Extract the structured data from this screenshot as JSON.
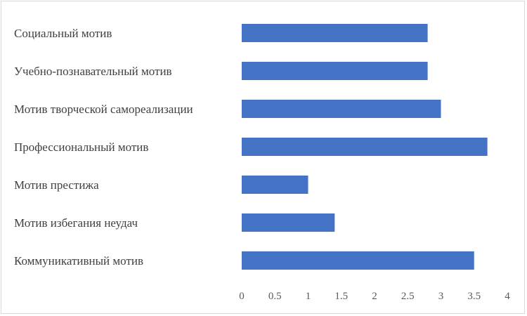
{
  "chart_data": {
    "type": "bar",
    "orientation": "horizontal",
    "categories": [
      "Социальный мотив",
      "Учебно-познавательный мотив",
      "Мотив творческой самореализации",
      "Профессиональный мотив",
      "Мотив престижа",
      "Мотив избегания неудач",
      "Коммуникативный мотив"
    ],
    "values": [
      2.8,
      2.8,
      3.0,
      3.7,
      1.0,
      1.4,
      3.5
    ],
    "xticks": [
      "0",
      "0.5",
      "1",
      "1.5",
      "2",
      "2.5",
      "3",
      "3.5",
      "4"
    ],
    "xlim": [
      0,
      4
    ],
    "grid": false,
    "legend": "none",
    "bar_color": "#4472c4",
    "title": "",
    "xlabel": "",
    "ylabel": ""
  }
}
